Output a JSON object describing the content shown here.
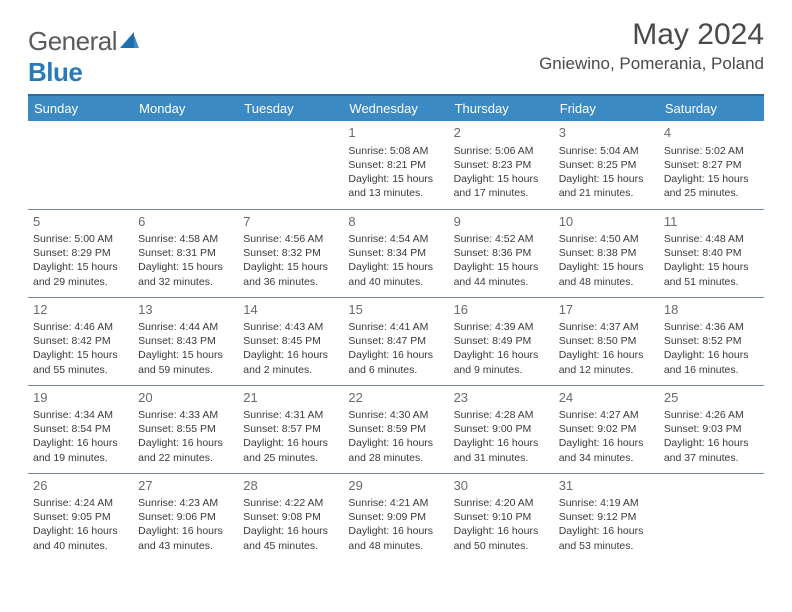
{
  "header": {
    "logo_general": "General",
    "logo_blue": "Blue",
    "month_title": "May 2024",
    "location": "Gniewino, Pomerania, Poland"
  },
  "colors": {
    "header_bg": "#3b8ac4",
    "header_text": "#ffffff",
    "rule": "#2a6ca8",
    "cell_border": "#6b8aa8",
    "daynum": "#6a6a6a",
    "body_text": "#3a3a3a",
    "logo_gray": "#5a5a5a",
    "logo_blue": "#2a7ab8"
  },
  "columns": [
    "Sunday",
    "Monday",
    "Tuesday",
    "Wednesday",
    "Thursday",
    "Friday",
    "Saturday"
  ],
  "weeks": [
    [
      {},
      {},
      {},
      {
        "day": "1",
        "sunrise": "Sunrise: 5:08 AM",
        "sunset": "Sunset: 8:21 PM",
        "dl1": "Daylight: 15 hours",
        "dl2": "and 13 minutes."
      },
      {
        "day": "2",
        "sunrise": "Sunrise: 5:06 AM",
        "sunset": "Sunset: 8:23 PM",
        "dl1": "Daylight: 15 hours",
        "dl2": "and 17 minutes."
      },
      {
        "day": "3",
        "sunrise": "Sunrise: 5:04 AM",
        "sunset": "Sunset: 8:25 PM",
        "dl1": "Daylight: 15 hours",
        "dl2": "and 21 minutes."
      },
      {
        "day": "4",
        "sunrise": "Sunrise: 5:02 AM",
        "sunset": "Sunset: 8:27 PM",
        "dl1": "Daylight: 15 hours",
        "dl2": "and 25 minutes."
      }
    ],
    [
      {
        "day": "5",
        "sunrise": "Sunrise: 5:00 AM",
        "sunset": "Sunset: 8:29 PM",
        "dl1": "Daylight: 15 hours",
        "dl2": "and 29 minutes."
      },
      {
        "day": "6",
        "sunrise": "Sunrise: 4:58 AM",
        "sunset": "Sunset: 8:31 PM",
        "dl1": "Daylight: 15 hours",
        "dl2": "and 32 minutes."
      },
      {
        "day": "7",
        "sunrise": "Sunrise: 4:56 AM",
        "sunset": "Sunset: 8:32 PM",
        "dl1": "Daylight: 15 hours",
        "dl2": "and 36 minutes."
      },
      {
        "day": "8",
        "sunrise": "Sunrise: 4:54 AM",
        "sunset": "Sunset: 8:34 PM",
        "dl1": "Daylight: 15 hours",
        "dl2": "and 40 minutes."
      },
      {
        "day": "9",
        "sunrise": "Sunrise: 4:52 AM",
        "sunset": "Sunset: 8:36 PM",
        "dl1": "Daylight: 15 hours",
        "dl2": "and 44 minutes."
      },
      {
        "day": "10",
        "sunrise": "Sunrise: 4:50 AM",
        "sunset": "Sunset: 8:38 PM",
        "dl1": "Daylight: 15 hours",
        "dl2": "and 48 minutes."
      },
      {
        "day": "11",
        "sunrise": "Sunrise: 4:48 AM",
        "sunset": "Sunset: 8:40 PM",
        "dl1": "Daylight: 15 hours",
        "dl2": "and 51 minutes."
      }
    ],
    [
      {
        "day": "12",
        "sunrise": "Sunrise: 4:46 AM",
        "sunset": "Sunset: 8:42 PM",
        "dl1": "Daylight: 15 hours",
        "dl2": "and 55 minutes."
      },
      {
        "day": "13",
        "sunrise": "Sunrise: 4:44 AM",
        "sunset": "Sunset: 8:43 PM",
        "dl1": "Daylight: 15 hours",
        "dl2": "and 59 minutes."
      },
      {
        "day": "14",
        "sunrise": "Sunrise: 4:43 AM",
        "sunset": "Sunset: 8:45 PM",
        "dl1": "Daylight: 16 hours",
        "dl2": "and 2 minutes."
      },
      {
        "day": "15",
        "sunrise": "Sunrise: 4:41 AM",
        "sunset": "Sunset: 8:47 PM",
        "dl1": "Daylight: 16 hours",
        "dl2": "and 6 minutes."
      },
      {
        "day": "16",
        "sunrise": "Sunrise: 4:39 AM",
        "sunset": "Sunset: 8:49 PM",
        "dl1": "Daylight: 16 hours",
        "dl2": "and 9 minutes."
      },
      {
        "day": "17",
        "sunrise": "Sunrise: 4:37 AM",
        "sunset": "Sunset: 8:50 PM",
        "dl1": "Daylight: 16 hours",
        "dl2": "and 12 minutes."
      },
      {
        "day": "18",
        "sunrise": "Sunrise: 4:36 AM",
        "sunset": "Sunset: 8:52 PM",
        "dl1": "Daylight: 16 hours",
        "dl2": "and 16 minutes."
      }
    ],
    [
      {
        "day": "19",
        "sunrise": "Sunrise: 4:34 AM",
        "sunset": "Sunset: 8:54 PM",
        "dl1": "Daylight: 16 hours",
        "dl2": "and 19 minutes."
      },
      {
        "day": "20",
        "sunrise": "Sunrise: 4:33 AM",
        "sunset": "Sunset: 8:55 PM",
        "dl1": "Daylight: 16 hours",
        "dl2": "and 22 minutes."
      },
      {
        "day": "21",
        "sunrise": "Sunrise: 4:31 AM",
        "sunset": "Sunset: 8:57 PM",
        "dl1": "Daylight: 16 hours",
        "dl2": "and 25 minutes."
      },
      {
        "day": "22",
        "sunrise": "Sunrise: 4:30 AM",
        "sunset": "Sunset: 8:59 PM",
        "dl1": "Daylight: 16 hours",
        "dl2": "and 28 minutes."
      },
      {
        "day": "23",
        "sunrise": "Sunrise: 4:28 AM",
        "sunset": "Sunset: 9:00 PM",
        "dl1": "Daylight: 16 hours",
        "dl2": "and 31 minutes."
      },
      {
        "day": "24",
        "sunrise": "Sunrise: 4:27 AM",
        "sunset": "Sunset: 9:02 PM",
        "dl1": "Daylight: 16 hours",
        "dl2": "and 34 minutes."
      },
      {
        "day": "25",
        "sunrise": "Sunrise: 4:26 AM",
        "sunset": "Sunset: 9:03 PM",
        "dl1": "Daylight: 16 hours",
        "dl2": "and 37 minutes."
      }
    ],
    [
      {
        "day": "26",
        "sunrise": "Sunrise: 4:24 AM",
        "sunset": "Sunset: 9:05 PM",
        "dl1": "Daylight: 16 hours",
        "dl2": "and 40 minutes."
      },
      {
        "day": "27",
        "sunrise": "Sunrise: 4:23 AM",
        "sunset": "Sunset: 9:06 PM",
        "dl1": "Daylight: 16 hours",
        "dl2": "and 43 minutes."
      },
      {
        "day": "28",
        "sunrise": "Sunrise: 4:22 AM",
        "sunset": "Sunset: 9:08 PM",
        "dl1": "Daylight: 16 hours",
        "dl2": "and 45 minutes."
      },
      {
        "day": "29",
        "sunrise": "Sunrise: 4:21 AM",
        "sunset": "Sunset: 9:09 PM",
        "dl1": "Daylight: 16 hours",
        "dl2": "and 48 minutes."
      },
      {
        "day": "30",
        "sunrise": "Sunrise: 4:20 AM",
        "sunset": "Sunset: 9:10 PM",
        "dl1": "Daylight: 16 hours",
        "dl2": "and 50 minutes."
      },
      {
        "day": "31",
        "sunrise": "Sunrise: 4:19 AM",
        "sunset": "Sunset: 9:12 PM",
        "dl1": "Daylight: 16 hours",
        "dl2": "and 53 minutes."
      },
      {}
    ]
  ]
}
